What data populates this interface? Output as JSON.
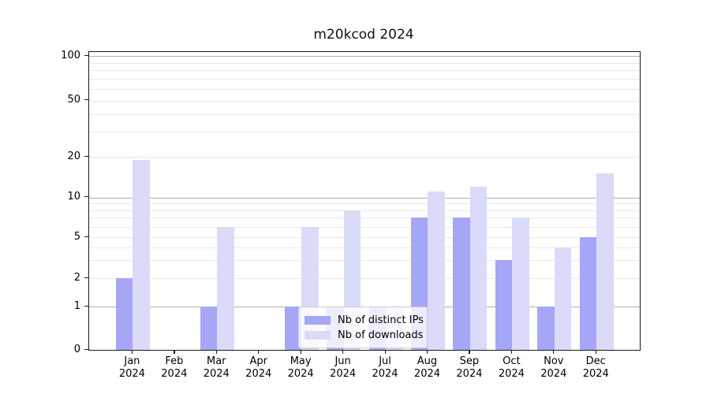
{
  "chart_data": {
    "type": "bar",
    "title": "m20kcod 2024",
    "categories": [
      "Jan",
      "Feb",
      "Mar",
      "Apr",
      "May",
      "Jun",
      "Jul",
      "Aug",
      "Sep",
      "Oct",
      "Nov",
      "Dec"
    ],
    "x_year_label": "2024",
    "series": [
      {
        "name": "Nb of distinct IPs",
        "color": "#a6a6f6",
        "values": [
          2,
          0,
          1,
          0,
          1,
          1,
          1,
          7,
          7,
          3,
          1,
          5
        ]
      },
      {
        "name": "Nb of downloads",
        "color": "#dadaf9",
        "values": [
          19,
          0,
          6,
          0,
          6,
          8,
          1,
          11,
          12,
          7,
          4,
          15
        ]
      }
    ],
    "yscale": "asinh-log",
    "yticks": [
      {
        "value": 100,
        "label": "100"
      },
      {
        "value": 50,
        "label": "50"
      },
      {
        "value": 20,
        "label": "20"
      },
      {
        "value": 10,
        "label": "10"
      },
      {
        "value": 5,
        "label": "5"
      },
      {
        "value": 2,
        "label": "2"
      },
      {
        "value": 1,
        "label": "1"
      },
      {
        "value": 0,
        "label": "0"
      }
    ],
    "minor_gridline_values": [
      2,
      3,
      4,
      5,
      6,
      7,
      8,
      9,
      20,
      30,
      40,
      50,
      60,
      70,
      80,
      90
    ],
    "major_gridline_values": [
      1,
      10,
      100
    ],
    "ylim": [
      0,
      107
    ],
    "legend_position": "lower center",
    "grid": true,
    "colors": {
      "major_grid": "#b0b0b0",
      "minor_grid": "#e9e9ed",
      "axis": "#1a1a1a",
      "background": "#ffffff"
    }
  }
}
